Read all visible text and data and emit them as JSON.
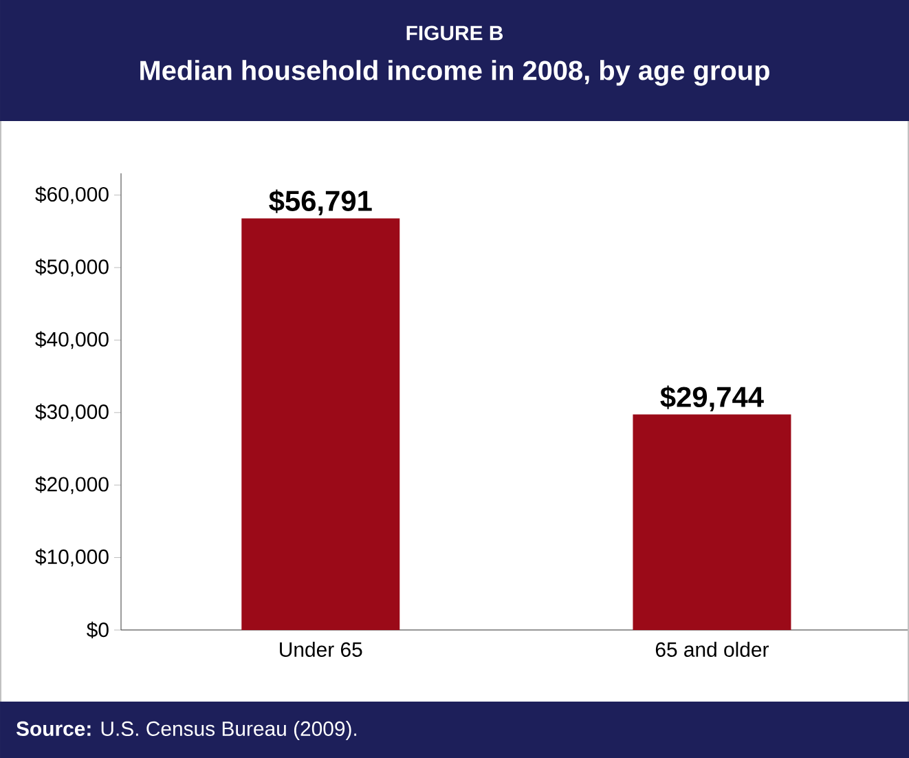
{
  "chart_data": {
    "type": "bar",
    "subtitle": "FIGURE B",
    "title": "Median household income in 2008, by age group",
    "categories": [
      "Under 65",
      "65 and older"
    ],
    "values": [
      56791,
      29744
    ],
    "value_labels": [
      "$56,791",
      "$29,744"
    ],
    "color": "#9b0a18",
    "ylim": [
      0,
      63000
    ],
    "yticks": [
      {
        "value": 0,
        "label": "$0"
      },
      {
        "value": 10000,
        "label": "$10,000"
      },
      {
        "value": 20000,
        "label": "$20,000"
      },
      {
        "value": 30000,
        "label": "$30,000"
      },
      {
        "value": 40000,
        "label": "$40,000"
      },
      {
        "value": 50000,
        "label": "$50,000"
      },
      {
        "value": 60000,
        "label": "$60,000"
      }
    ],
    "annotations": [
      "**Source:** U.S. Census Bureau (2009)."
    ],
    "grid": false
  }
}
